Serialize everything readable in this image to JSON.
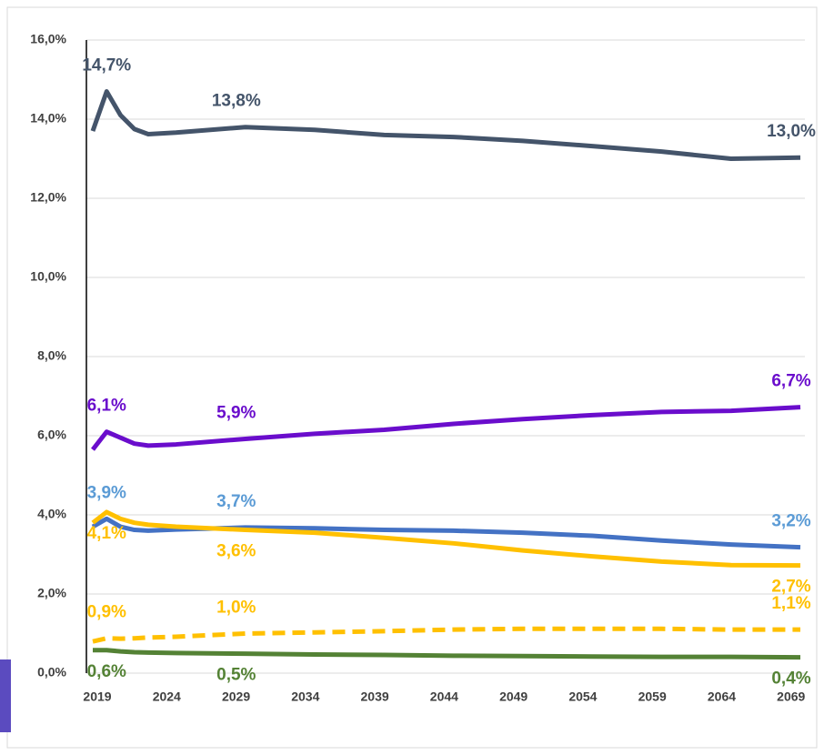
{
  "chart_data": {
    "type": "line",
    "x": [
      2019,
      2020,
      2021,
      2022,
      2023,
      2025,
      2030,
      2035,
      2040,
      2045,
      2050,
      2055,
      2060,
      2065,
      2070
    ],
    "xlim": [
      2019,
      2070
    ],
    "xticks": [
      2019,
      2024,
      2029,
      2034,
      2039,
      2044,
      2049,
      2054,
      2059,
      2064,
      2069
    ],
    "ylim": [
      0,
      16
    ],
    "yticks": [
      {
        "value": 0,
        "label": "0,0%"
      },
      {
        "value": 2,
        "label": "2,0%"
      },
      {
        "value": 4,
        "label": "4,0%"
      },
      {
        "value": 6,
        "label": "6,0%"
      },
      {
        "value": 8,
        "label": "8,0%"
      },
      {
        "value": 10,
        "label": "10,0%"
      },
      {
        "value": 12,
        "label": "12,0%"
      },
      {
        "value": 14,
        "label": "14,0%"
      },
      {
        "value": 16,
        "label": "16,0%"
      }
    ],
    "grid": true,
    "series": [
      {
        "color": "#44546a",
        "dashed": false,
        "values": [
          13.7,
          14.7,
          14.1,
          13.75,
          13.62,
          13.66,
          13.8,
          13.73,
          13.6,
          13.55,
          13.45,
          13.32,
          13.18,
          13.0,
          13.03
        ],
        "value_labels": [
          null,
          "14,7%",
          null,
          null,
          null,
          null,
          "13,8%",
          null,
          null,
          null,
          null,
          null,
          null,
          null,
          "13,0%"
        ]
      },
      {
        "color": "#6a0dcc",
        "dashed": false,
        "values": [
          5.65,
          6.1,
          5.95,
          5.8,
          5.75,
          5.78,
          5.92,
          6.05,
          6.15,
          6.3,
          6.42,
          6.52,
          6.6,
          6.63,
          6.72
        ],
        "value_labels": [
          null,
          "6,1%",
          null,
          null,
          null,
          null,
          "5,9%",
          null,
          null,
          null,
          null,
          null,
          null,
          null,
          "6,7%"
        ]
      },
      {
        "color": "#4472c4",
        "dashed": false,
        "values": [
          3.7,
          3.9,
          3.7,
          3.62,
          3.6,
          3.63,
          3.68,
          3.66,
          3.62,
          3.6,
          3.55,
          3.47,
          3.35,
          3.25,
          3.18
        ],
        "value_labels": [
          null,
          "3,9%",
          null,
          null,
          null,
          null,
          "3,7%",
          null,
          null,
          null,
          null,
          null,
          null,
          null,
          "3,2%"
        ]
      },
      {
        "color": "#ffc000",
        "dashed": false,
        "values": [
          3.8,
          4.07,
          3.9,
          3.8,
          3.75,
          3.7,
          3.62,
          3.55,
          3.42,
          3.28,
          3.1,
          2.95,
          2.82,
          2.73,
          2.72
        ],
        "value_labels": [
          null,
          "4,1%",
          null,
          null,
          null,
          null,
          "3,6%",
          null,
          null,
          null,
          null,
          null,
          null,
          null,
          "2,7%"
        ]
      },
      {
        "color": "#ffc000",
        "dashed": true,
        "values": [
          0.8,
          0.88,
          0.87,
          0.88,
          0.9,
          0.92,
          1.0,
          1.03,
          1.06,
          1.1,
          1.12,
          1.12,
          1.12,
          1.1,
          1.1
        ],
        "value_labels": [
          null,
          "0,9%",
          null,
          null,
          null,
          null,
          "1,0%",
          null,
          null,
          null,
          null,
          null,
          null,
          null,
          "1,1%"
        ]
      },
      {
        "color": "#548235",
        "dashed": false,
        "values": [
          0.58,
          0.58,
          0.55,
          0.53,
          0.52,
          0.51,
          0.49,
          0.47,
          0.46,
          0.44,
          0.43,
          0.42,
          0.41,
          0.41,
          0.4
        ],
        "value_labels": [
          null,
          "0,6%",
          null,
          null,
          null,
          null,
          "0,5%",
          null,
          null,
          null,
          null,
          null,
          null,
          null,
          "0,4%"
        ]
      }
    ]
  }
}
